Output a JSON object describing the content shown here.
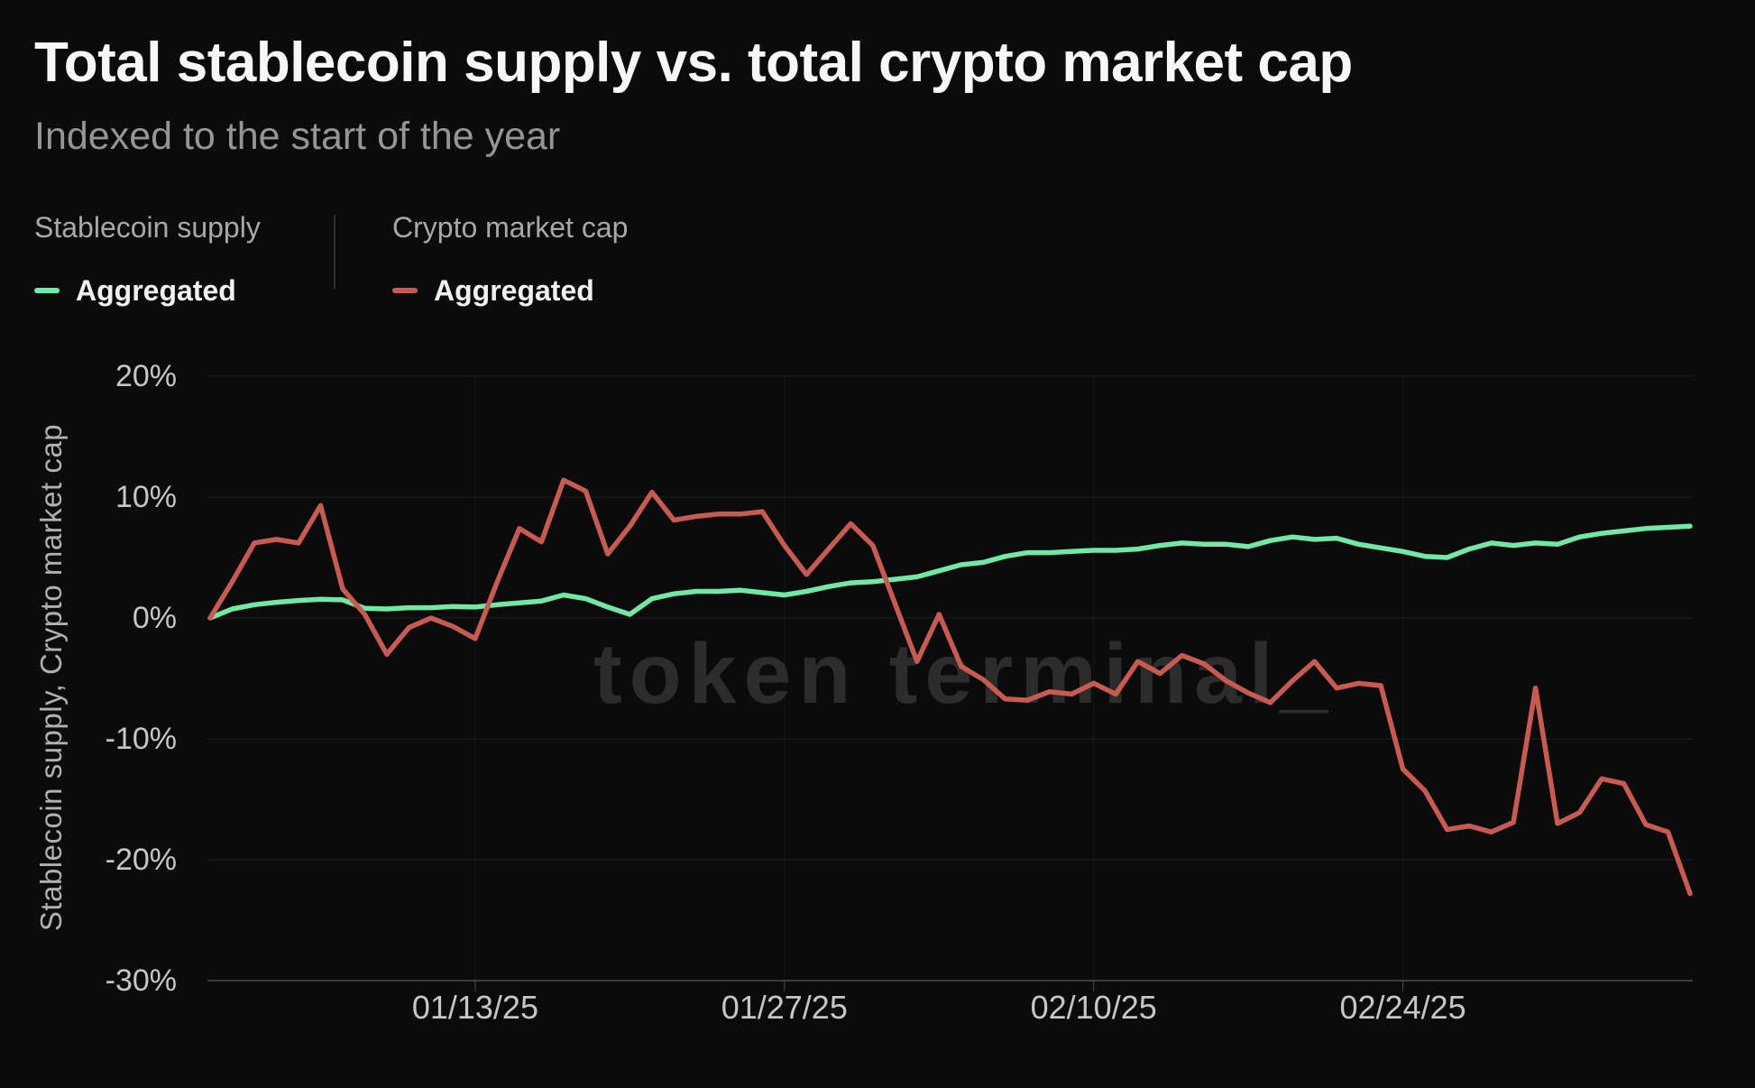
{
  "header": {
    "title": "Total stablecoin supply vs. total crypto market cap",
    "subtitle": "Indexed to the start of the year"
  },
  "legend": {
    "groups": [
      {
        "group_label": "Stablecoin supply",
        "item_label": "Aggregated",
        "color": "#72e8a6"
      },
      {
        "group_label": "Crypto market cap",
        "item_label": "Aggregated",
        "color": "#c75b51"
      }
    ]
  },
  "watermark": "token terminal_",
  "colors": {
    "background": "#0b0b0b",
    "grid": "#1f1f1f",
    "grid_vertical": "#171717",
    "axis": "#3c3c3c",
    "tick_stub": "#4a4a4a",
    "tick_text": "#c6c6c6",
    "title": "#f7f7f7",
    "subtitle": "#959595",
    "watermark": "#2c2c2c",
    "stablecoin_line": "#72e8a6",
    "market_cap_line": "#c75b51"
  },
  "chart_data": {
    "type": "line",
    "title": "Total stablecoin supply vs. total crypto market cap",
    "subtitle": "Indexed to the start of the year",
    "xlabel": "",
    "ylabel": "Stablecoin supply, Crypto market cap",
    "ylim": [
      -30,
      20
    ],
    "grid": true,
    "legend_position": "top-left",
    "y_ticks": [
      "20%",
      "10%",
      "0%",
      "-10%",
      "-20%",
      "-30%"
    ],
    "y_tick_values": [
      20,
      10,
      0,
      -10,
      -20,
      -30
    ],
    "x_ticks": [
      "01/13/25",
      "01/27/25",
      "02/10/25",
      "02/24/25"
    ],
    "x_tick_indices": [
      12,
      26,
      40,
      54
    ],
    "x": [
      "01/01/25",
      "01/02/25",
      "01/03/25",
      "01/04/25",
      "01/05/25",
      "01/06/25",
      "01/07/25",
      "01/08/25",
      "01/09/25",
      "01/10/25",
      "01/11/25",
      "01/12/25",
      "01/13/25",
      "01/14/25",
      "01/15/25",
      "01/16/25",
      "01/17/25",
      "01/18/25",
      "01/19/25",
      "01/20/25",
      "01/21/25",
      "01/22/25",
      "01/23/25",
      "01/24/25",
      "01/25/25",
      "01/26/25",
      "01/27/25",
      "01/28/25",
      "01/29/25",
      "01/30/25",
      "01/31/25",
      "02/01/25",
      "02/02/25",
      "02/03/25",
      "02/04/25",
      "02/05/25",
      "02/06/25",
      "02/07/25",
      "02/08/25",
      "02/09/25",
      "02/10/25",
      "02/11/25",
      "02/12/25",
      "02/13/25",
      "02/14/25",
      "02/15/25",
      "02/16/25",
      "02/17/25",
      "02/18/25",
      "02/19/25",
      "02/20/25",
      "02/21/25",
      "02/22/25",
      "02/23/25",
      "02/24/25",
      "02/25/25",
      "02/26/25",
      "02/27/25",
      "02/28/25",
      "03/01/25",
      "03/02/25",
      "03/03/25",
      "03/04/25",
      "03/05/25",
      "03/06/25",
      "03/07/25",
      "03/08/25",
      "03/09/25"
    ],
    "series": [
      {
        "name": "Stablecoin supply — Aggregated",
        "color": "#72e8a6",
        "values": [
          0.0,
          0.75,
          1.1,
          1.3,
          1.45,
          1.55,
          1.5,
          0.8,
          0.75,
          0.85,
          0.85,
          0.95,
          0.9,
          1.1,
          1.25,
          1.4,
          1.9,
          1.6,
          0.9,
          0.3,
          1.6,
          2.0,
          2.2,
          2.2,
          2.3,
          2.1,
          1.9,
          2.2,
          2.6,
          2.9,
          3.0,
          3.2,
          3.4,
          3.9,
          4.4,
          4.6,
          5.1,
          5.4,
          5.4,
          5.5,
          5.6,
          5.6,
          5.7,
          6.0,
          6.2,
          6.1,
          6.1,
          5.9,
          6.4,
          6.7,
          6.5,
          6.6,
          6.1,
          5.8,
          5.5,
          5.1,
          5.0,
          5.7,
          6.2,
          6.0,
          6.2,
          6.1,
          6.7,
          7.0,
          7.2,
          7.4,
          7.5,
          7.6
        ]
      },
      {
        "name": "Crypto market cap — Aggregated",
        "color": "#c75b51",
        "values": [
          0.0,
          3.0,
          6.2,
          6.5,
          6.2,
          9.3,
          2.4,
          0.3,
          -3.0,
          -0.8,
          0.0,
          -0.7,
          -1.7,
          3.0,
          7.4,
          6.3,
          11.4,
          10.5,
          5.3,
          7.6,
          10.4,
          8.1,
          8.4,
          8.6,
          8.6,
          8.8,
          6.0,
          3.6,
          5.7,
          7.8,
          6.0,
          1.2,
          -3.6,
          0.3,
          -4.0,
          -5.1,
          -6.7,
          -6.8,
          -6.1,
          -6.3,
          -5.4,
          -6.3,
          -3.6,
          -4.6,
          -3.1,
          -3.8,
          -5.2,
          -6.2,
          -7.0,
          -5.2,
          -3.6,
          -5.8,
          -5.4,
          -5.6,
          -12.5,
          -14.3,
          -17.5,
          -17.2,
          -17.7,
          -16.9,
          -5.8,
          -17.0,
          -16.1,
          -13.3,
          -13.7,
          -17.1,
          -17.7,
          -22.8
        ]
      }
    ]
  }
}
